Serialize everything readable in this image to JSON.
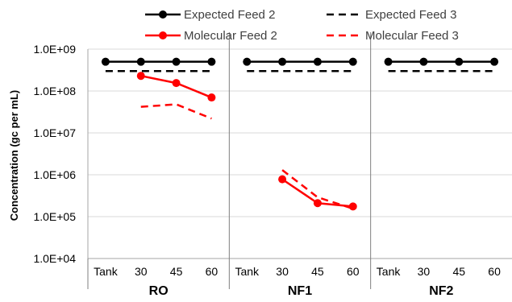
{
  "chart_data": {
    "type": "line",
    "ylabel": "Concentration (gc per mL)",
    "yscale": "log",
    "ylim": [
      10000,
      1000000000
    ],
    "yticks": [
      "1.0E+04",
      "1.0E+05",
      "1.0E+06",
      "1.0E+07",
      "1.0E+08",
      "1.0E+09"
    ],
    "grid": true,
    "legend_position": "top",
    "groups": [
      {
        "name": "RO",
        "categories": [
          "Tank",
          "30",
          "45",
          "60"
        ]
      },
      {
        "name": "NF1",
        "categories": [
          "Tank",
          "30",
          "45",
          "60"
        ]
      },
      {
        "name": "NF2",
        "categories": [
          "Tank",
          "30",
          "45",
          "60"
        ]
      }
    ],
    "series": [
      {
        "name": "Expected Feed 2",
        "color": "#000000",
        "style": "solid",
        "markers": true,
        "values": [
          [
            500000000,
            500000000,
            500000000,
            500000000
          ],
          [
            500000000,
            500000000,
            500000000,
            500000000
          ],
          [
            500000000,
            500000000,
            500000000,
            500000000
          ]
        ]
      },
      {
        "name": "Expected Feed 3",
        "color": "#000000",
        "style": "dashed",
        "markers": false,
        "values": [
          [
            300000000,
            300000000,
            300000000,
            300000000
          ],
          [
            300000000,
            300000000,
            300000000,
            300000000
          ],
          [
            300000000,
            300000000,
            300000000,
            300000000
          ]
        ]
      },
      {
        "name": "Molecular Feed 2",
        "color": "#ff0000",
        "style": "solid",
        "markers": true,
        "values": [
          [
            null,
            230000000,
            155000000,
            70000000
          ],
          [
            null,
            780000,
            210000,
            175000
          ],
          [
            null,
            null,
            null,
            null
          ]
        ]
      },
      {
        "name": "Molecular Feed 3",
        "color": "#ff0000",
        "style": "dashed",
        "markers": false,
        "values": [
          [
            null,
            42000000,
            48000000,
            22000000
          ],
          [
            null,
            1300000,
            290000,
            155000
          ],
          [
            null,
            null,
            null,
            null
          ]
        ]
      }
    ]
  }
}
